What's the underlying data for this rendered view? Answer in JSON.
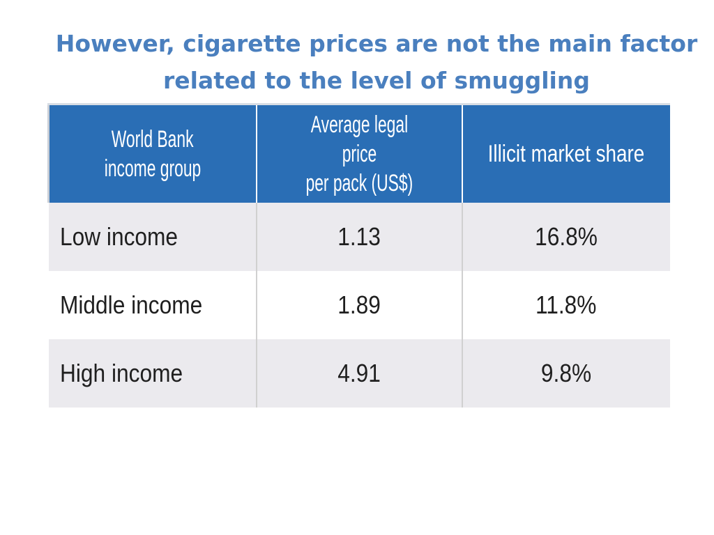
{
  "slide": {
    "title_line1": "However, cigarette prices are not the main factor",
    "title_line2": "related to the level of smuggling"
  },
  "table": {
    "headers": [
      [
        "World Bank",
        "income group"
      ],
      [
        "Average legal price",
        "per pack (US$)"
      ],
      [
        "Illicit market share"
      ]
    ],
    "rows": [
      [
        "Low income",
        "1.13",
        "16.8%"
      ],
      [
        "Middle income",
        "1.89",
        "11.8%"
      ],
      [
        "High income",
        "4.91",
        "9.8%"
      ]
    ]
  },
  "colors": {
    "title": "#4a7fbe",
    "header_bg": "#2a6eb5",
    "row_shade": "#ebeaee"
  }
}
